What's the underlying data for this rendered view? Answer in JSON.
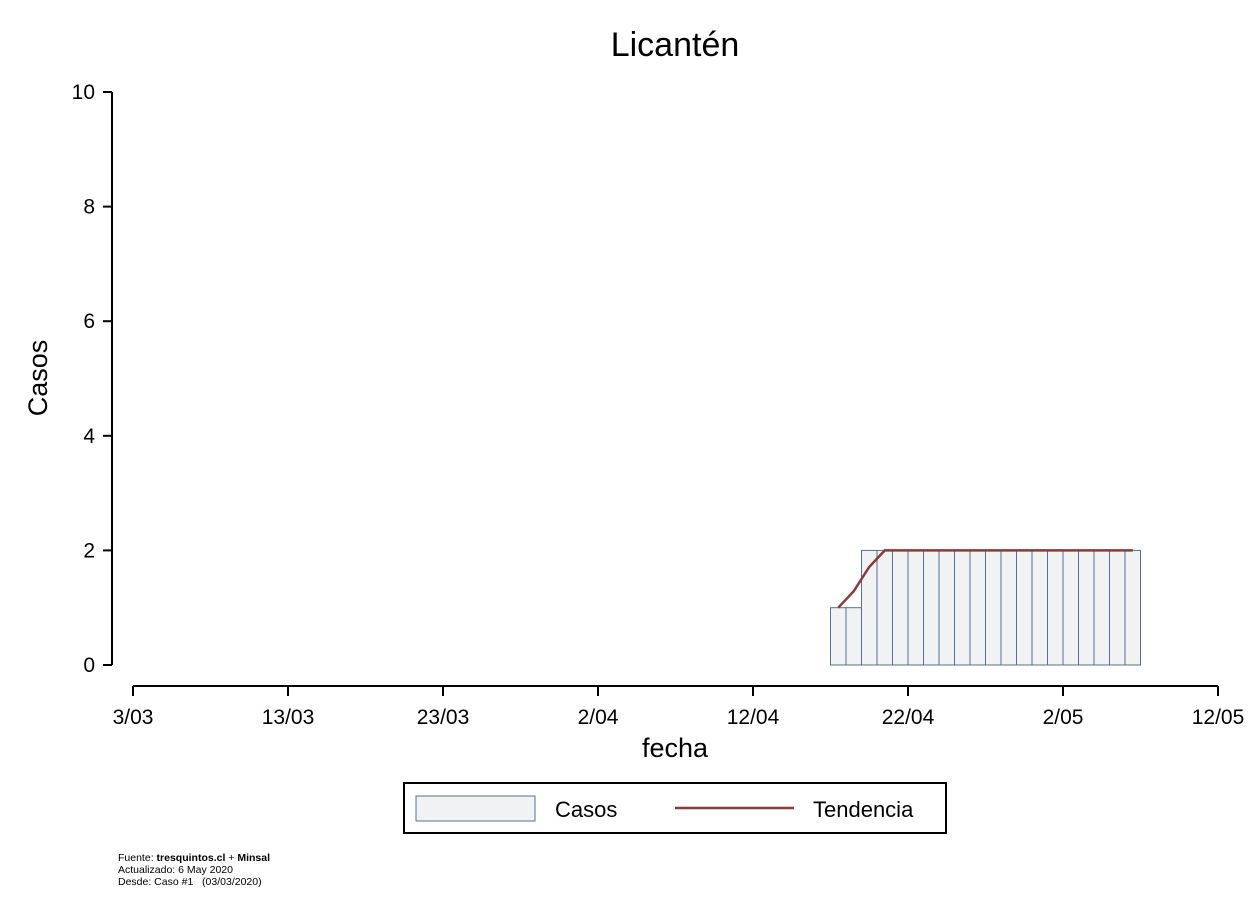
{
  "chart_data": {
    "type": "bar",
    "title": "Licantén",
    "xlabel": "fecha",
    "ylabel": "Casos",
    "ylim": [
      0,
      10
    ],
    "yticks": [
      "0",
      "2",
      "4",
      "6",
      "8",
      "10"
    ],
    "xlim": [
      "2020-03-03",
      "2020-05-12"
    ],
    "xticks": [
      {
        "date": "2020-03-03",
        "label": "3/03"
      },
      {
        "date": "2020-03-13",
        "label": "13/03"
      },
      {
        "date": "2020-03-23",
        "label": "23/03"
      },
      {
        "date": "2020-04-02",
        "label": "2/04"
      },
      {
        "date": "2020-04-12",
        "label": "12/04"
      },
      {
        "date": "2020-04-22",
        "label": "22/04"
      },
      {
        "date": "2020-05-02",
        "label": "2/05"
      },
      {
        "date": "2020-05-12",
        "label": "12/05"
      }
    ],
    "grid": false,
    "legend_position": "bottom",
    "series": [
      {
        "name": "Casos",
        "kind": "bar",
        "color": "#f1f2f4",
        "edge_color": "#5a6e8c",
        "x": [
          "2020-04-17",
          "2020-04-18",
          "2020-04-19",
          "2020-04-20",
          "2020-04-21",
          "2020-04-22",
          "2020-04-23",
          "2020-04-24",
          "2020-04-25",
          "2020-04-26",
          "2020-04-27",
          "2020-04-28",
          "2020-04-29",
          "2020-04-30",
          "2020-05-01",
          "2020-05-02",
          "2020-05-03",
          "2020-05-04",
          "2020-05-05",
          "2020-05-06"
        ],
        "values": [
          1,
          1,
          2,
          2,
          2,
          2,
          2,
          2,
          2,
          2,
          2,
          2,
          2,
          2,
          2,
          2,
          2,
          2,
          2,
          2
        ]
      },
      {
        "name": "Tendencia",
        "kind": "line",
        "color": "#8b3a3a",
        "x": [
          "2020-04-17",
          "2020-04-18",
          "2020-04-19",
          "2020-04-20",
          "2020-04-21",
          "2020-04-22",
          "2020-04-23",
          "2020-04-24",
          "2020-04-25",
          "2020-04-26",
          "2020-04-27",
          "2020-04-28",
          "2020-04-29",
          "2020-04-30",
          "2020-05-01",
          "2020-05-02",
          "2020-05-03",
          "2020-05-04",
          "2020-05-05",
          "2020-05-06"
        ],
        "values": [
          1,
          1.29,
          1.71,
          2,
          2,
          2,
          2,
          2,
          2,
          2,
          2,
          2,
          2,
          2,
          2,
          2,
          2,
          2,
          2,
          2
        ]
      }
    ]
  },
  "footer": {
    "source_label": "Fuente: ",
    "source_bold_1": "tresquintos.cl",
    "source_plus": " + ",
    "source_bold_2": "Minsal",
    "updated": "Actualizado: 6 May 2020",
    "since": "Desde: Caso #1   (03/03/2020)"
  }
}
